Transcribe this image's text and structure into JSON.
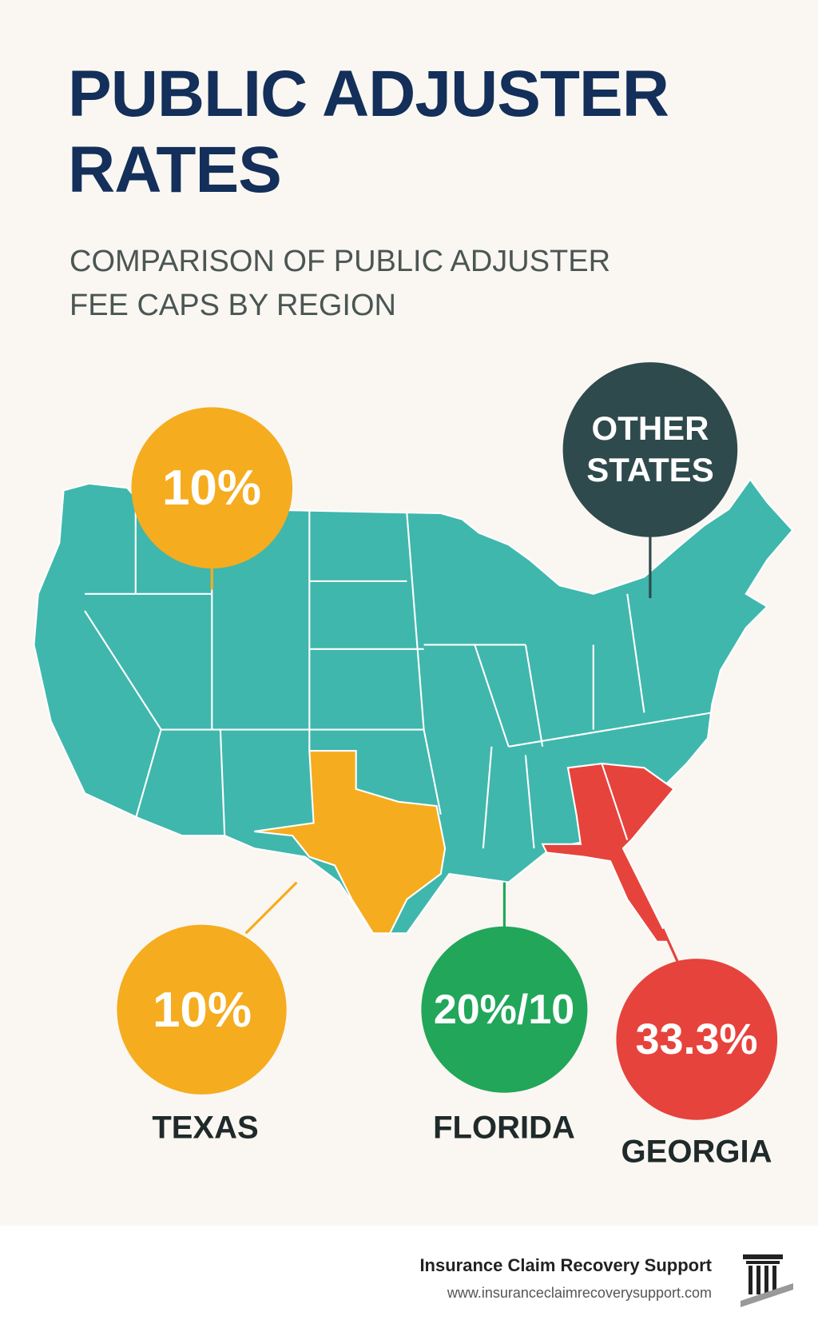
{
  "header": {
    "title": "PUBLIC ADJUSTER RATES",
    "subtitle": "COMPARISON OF PUBLIC ADJUSTER FEE CAPS BY REGION"
  },
  "callouts": [
    {
      "value": "10%"
    },
    {
      "value": "OTHER STATES"
    },
    {
      "value": "10%",
      "label": "TEXAS"
    },
    {
      "value": "20%/10",
      "label": "FLORIDA"
    },
    {
      "value": "33.3%",
      "label": "GEORGIA"
    }
  ],
  "footer": {
    "company": "Insurance Claim Recovery Support",
    "url": "www.insuranceclaimrecoverysupport.com"
  }
}
